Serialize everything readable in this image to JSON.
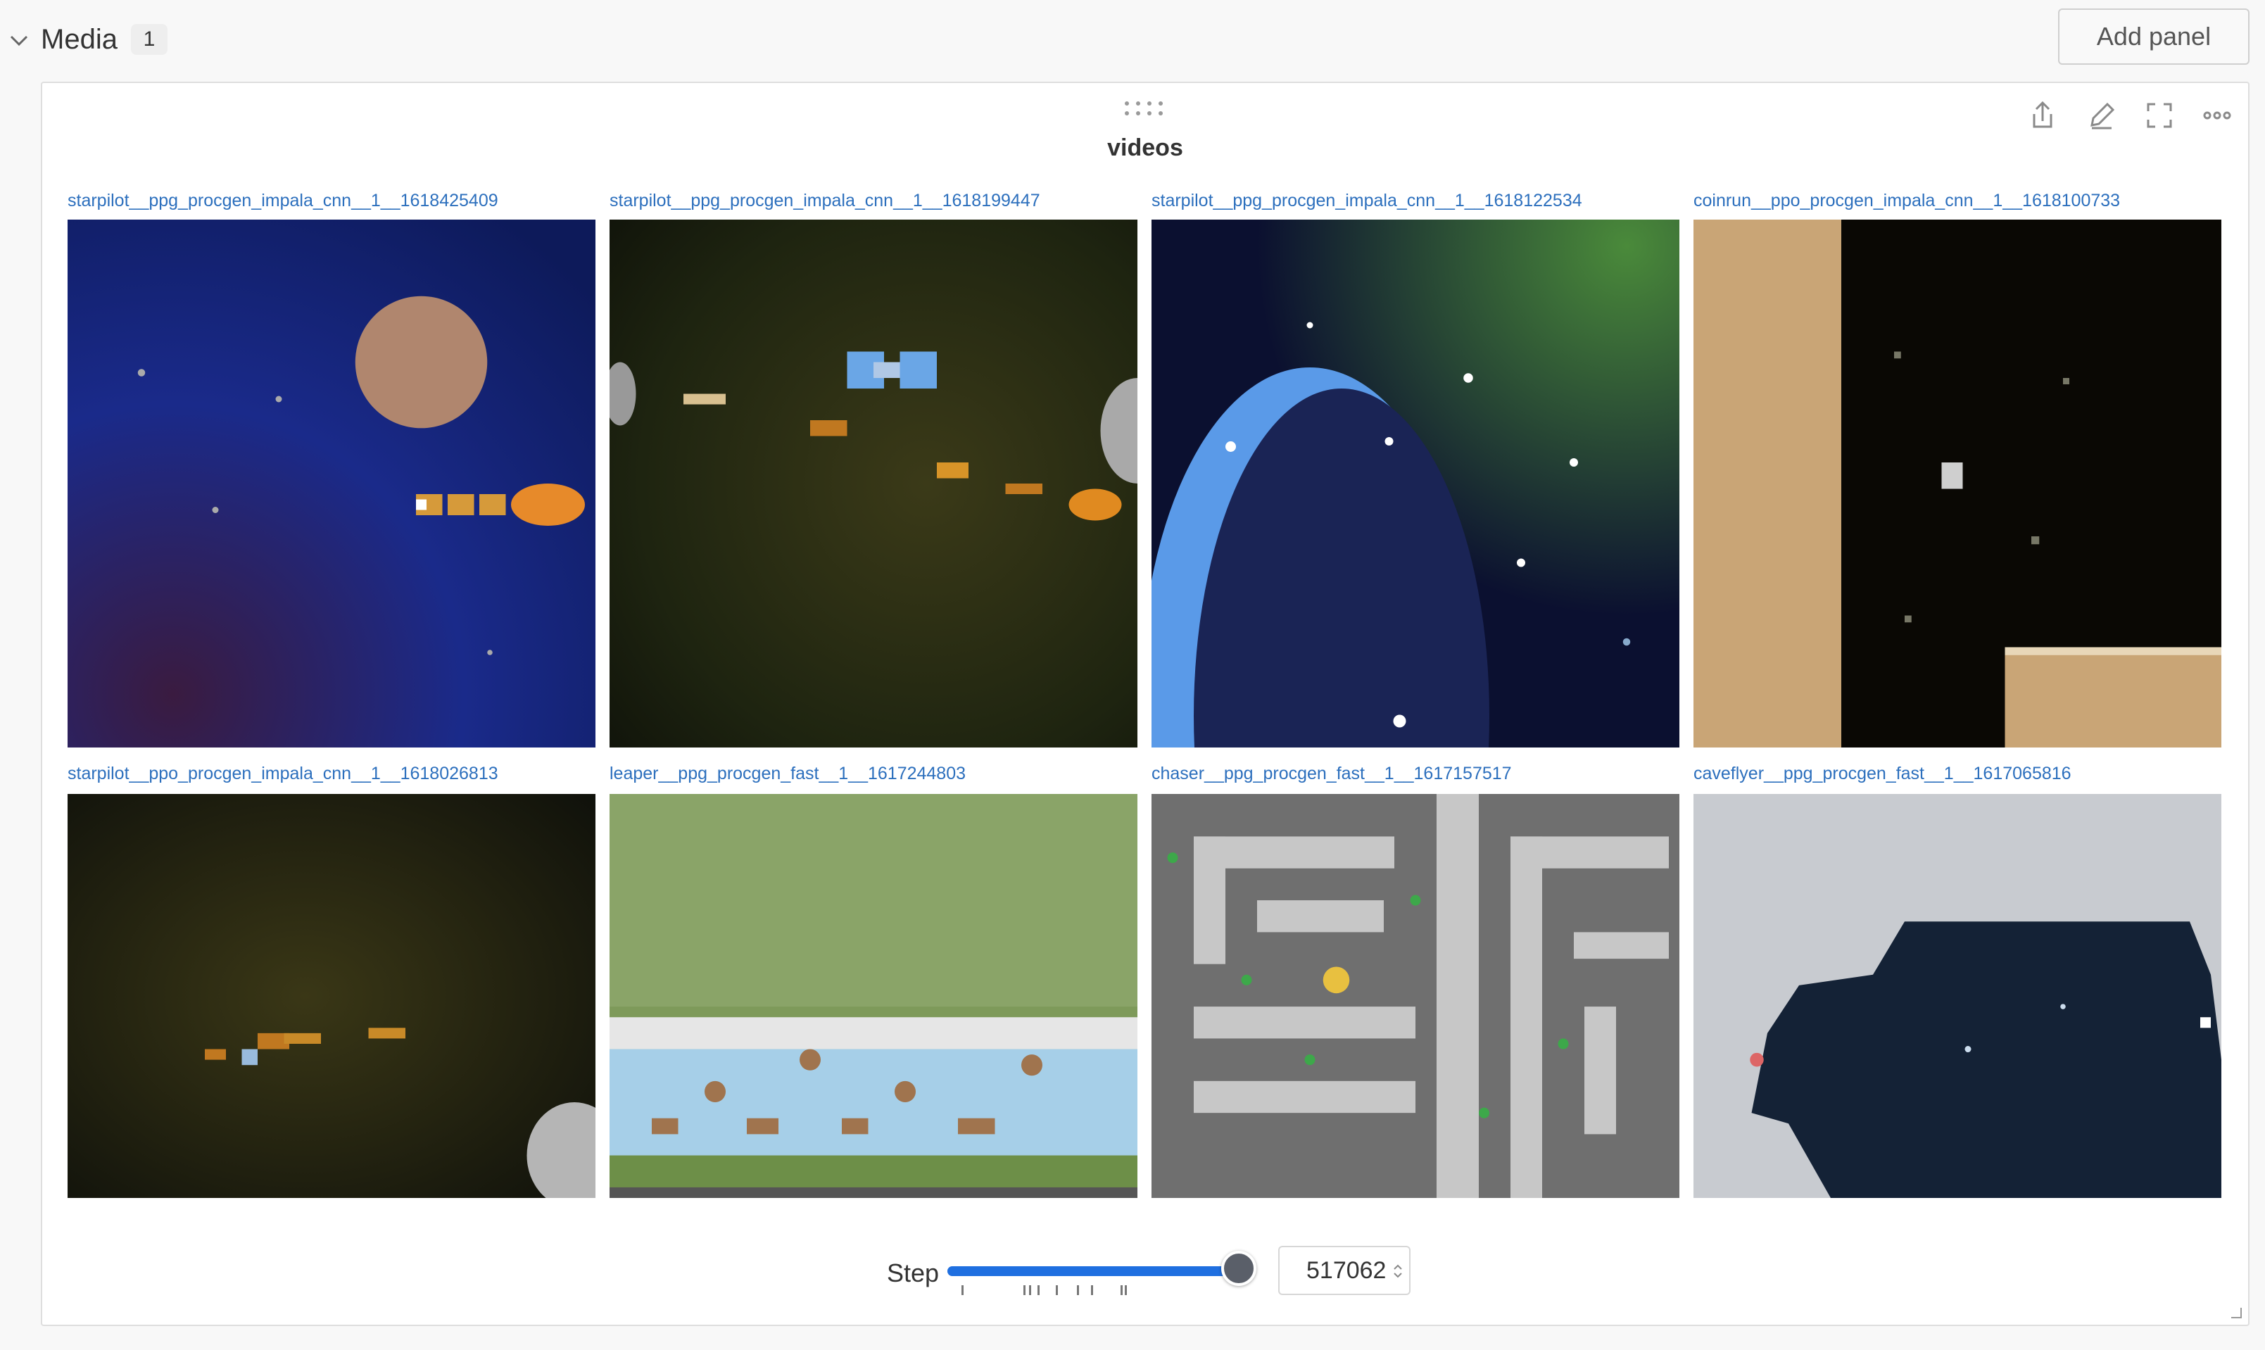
{
  "section": {
    "title": "Media",
    "count": "1",
    "add_panel_label": "Add panel"
  },
  "panel": {
    "title": "videos",
    "tools": [
      "share-icon",
      "edit-icon",
      "fullscreen-icon",
      "more-icon"
    ],
    "media": [
      {
        "caption": "starpilot__ppg_procgen_impala_cnn__1__1618425409",
        "scene": "space-blue"
      },
      {
        "caption": "starpilot__ppg_procgen_impala_cnn__1__1618199447",
        "scene": "space-nebula"
      },
      {
        "caption": "starpilot__ppg_procgen_impala_cnn__1__1618122534",
        "scene": "space-planet"
      },
      {
        "caption": "coinrun__ppo_procgen_impala_cnn__1__1618100733",
        "scene": "coinrun"
      },
      {
        "caption": "starpilot__ppo_procgen_impala_cnn__1__1618026813",
        "scene": "space-dark"
      },
      {
        "caption": "leaper__ppg_procgen_fast__1__1617244803",
        "scene": "leaper"
      },
      {
        "caption": "chaser__ppg_procgen_fast__1__1617157517",
        "scene": "chaser"
      },
      {
        "caption": "caveflyer__ppg_procgen_fast__1__1617065816",
        "scene": "caveflyer"
      }
    ],
    "step": {
      "label": "Step",
      "value": "517062",
      "slider_fraction": 1.0
    }
  },
  "colors": {
    "link": "#2c6fbd",
    "slider_fill": "#1f6fe0",
    "slider_thumb": "#5a5f69"
  }
}
